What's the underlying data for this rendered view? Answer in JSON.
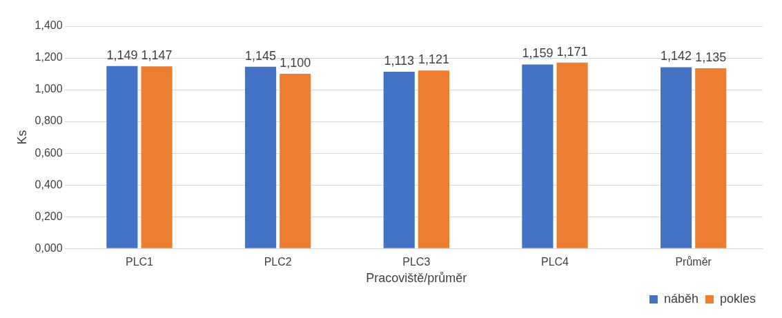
{
  "chart_data": {
    "type": "bar",
    "xlabel": "Pracoviště/průměr",
    "ylabel": "Ks",
    "categories": [
      "PLC1",
      "PLC2",
      "PLC3",
      "PLC4",
      "Průměr"
    ],
    "series": [
      {
        "name": "náběh",
        "color": "#4472c4",
        "values": [
          1.149,
          1.145,
          1.113,
          1.159,
          1.142
        ],
        "value_labels": [
          "1,149",
          "1,145",
          "1,113",
          "1,159",
          "1,142"
        ]
      },
      {
        "name": "pokles",
        "color": "#ed7d31",
        "values": [
          1.147,
          1.1,
          1.121,
          1.171,
          1.135
        ],
        "value_labels": [
          "1,147",
          "1,100",
          "1,121",
          "1,171",
          "1,135"
        ]
      }
    ],
    "ylim": [
      0,
      1.4
    ],
    "yticks": [
      {
        "value": 0,
        "label": "0,000"
      },
      {
        "value": 0.2,
        "label": "0,200"
      },
      {
        "value": 0.4,
        "label": "0,400"
      },
      {
        "value": 0.6,
        "label": "0,600"
      },
      {
        "value": 0.8,
        "label": "0,800"
      },
      {
        "value": 1,
        "label": "1,000"
      },
      {
        "value": 1.2,
        "label": "1,200"
      },
      {
        "value": 1.4,
        "label": "1,400"
      }
    ],
    "grid": "y",
    "legend": "bottom right"
  }
}
